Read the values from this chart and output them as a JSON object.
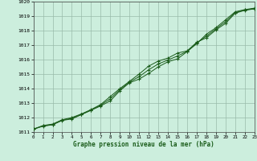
{
  "xlabel": "Graphe pression niveau de la mer (hPa)",
  "bg_color": "#cceedd",
  "grid_color": "#99bbaa",
  "line_color": "#1a5c1a",
  "x_min": 0,
  "x_max": 23,
  "y_min": 1011,
  "y_max": 1020,
  "series1": [
    [
      0,
      1011.2
    ],
    [
      1,
      1011.4
    ],
    [
      2,
      1011.5
    ],
    [
      3,
      1011.8
    ],
    [
      4,
      1011.9
    ],
    [
      5,
      1012.2
    ],
    [
      6,
      1012.5
    ],
    [
      7,
      1012.8
    ],
    [
      8,
      1013.15
    ],
    [
      9,
      1013.85
    ],
    [
      10,
      1014.4
    ],
    [
      11,
      1014.65
    ],
    [
      12,
      1015.05
    ],
    [
      13,
      1015.5
    ],
    [
      14,
      1015.85
    ],
    [
      15,
      1016.05
    ],
    [
      16,
      1016.55
    ],
    [
      17,
      1017.1
    ],
    [
      18,
      1017.75
    ],
    [
      19,
      1018.2
    ],
    [
      20,
      1018.75
    ],
    [
      21,
      1019.3
    ],
    [
      22,
      1019.45
    ],
    [
      23,
      1019.55
    ]
  ],
  "series2": [
    [
      0,
      1011.2
    ],
    [
      1,
      1011.45
    ],
    [
      2,
      1011.55
    ],
    [
      3,
      1011.85
    ],
    [
      4,
      1012.0
    ],
    [
      5,
      1012.25
    ],
    [
      6,
      1012.55
    ],
    [
      7,
      1012.9
    ],
    [
      8,
      1013.45
    ],
    [
      9,
      1014.0
    ],
    [
      10,
      1014.5
    ],
    [
      11,
      1015.0
    ],
    [
      12,
      1015.55
    ],
    [
      13,
      1015.9
    ],
    [
      14,
      1016.1
    ],
    [
      15,
      1016.45
    ],
    [
      16,
      1016.6
    ],
    [
      17,
      1017.2
    ],
    [
      18,
      1017.5
    ],
    [
      19,
      1018.05
    ],
    [
      20,
      1018.5
    ],
    [
      21,
      1019.2
    ],
    [
      22,
      1019.4
    ],
    [
      23,
      1019.5
    ]
  ],
  "series3": [
    [
      0,
      1011.2
    ],
    [
      1,
      1011.42
    ],
    [
      2,
      1011.52
    ],
    [
      3,
      1011.82
    ],
    [
      4,
      1011.95
    ],
    [
      5,
      1012.22
    ],
    [
      6,
      1012.52
    ],
    [
      7,
      1012.85
    ],
    [
      8,
      1013.3
    ],
    [
      9,
      1013.92
    ],
    [
      10,
      1014.45
    ],
    [
      11,
      1014.82
    ],
    [
      12,
      1015.3
    ],
    [
      13,
      1015.7
    ],
    [
      14,
      1015.97
    ],
    [
      15,
      1016.25
    ],
    [
      16,
      1016.57
    ],
    [
      17,
      1017.15
    ],
    [
      18,
      1017.62
    ],
    [
      19,
      1018.12
    ],
    [
      20,
      1018.62
    ],
    [
      21,
      1019.25
    ],
    [
      22,
      1019.42
    ],
    [
      23,
      1019.52
    ]
  ]
}
